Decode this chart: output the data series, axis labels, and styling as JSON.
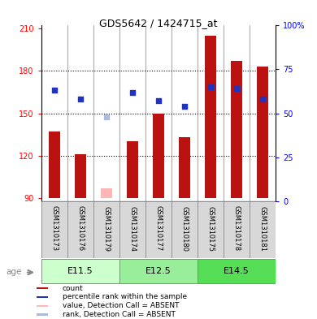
{
  "title": "GDS5642 / 1424715_at",
  "samples": [
    "GSM1310173",
    "GSM1310176",
    "GSM1310179",
    "GSM1310174",
    "GSM1310177",
    "GSM1310180",
    "GSM1310175",
    "GSM1310178",
    "GSM1310181"
  ],
  "counts": [
    137,
    121,
    null,
    130,
    150,
    133,
    205,
    187,
    183
  ],
  "ranks_pct": [
    63,
    58,
    null,
    62,
    57,
    54,
    65,
    64,
    58
  ],
  "absent_count": [
    null,
    null,
    97,
    null,
    null,
    null,
    null,
    null,
    null
  ],
  "absent_rank_pct": [
    null,
    null,
    48,
    null,
    null,
    null,
    null,
    null,
    null
  ],
  "groups": [
    {
      "label": "E11.5",
      "indices": [
        0,
        1,
        2
      ]
    },
    {
      "label": "E12.5",
      "indices": [
        3,
        4,
        5
      ]
    },
    {
      "label": "E14.5",
      "indices": [
        6,
        7,
        8
      ]
    }
  ],
  "ylim_left": [
    88,
    212
  ],
  "ylim_right": [
    0,
    100
  ],
  "yticks_left": [
    90,
    120,
    150,
    180,
    210
  ],
  "yticks_right": [
    0,
    25,
    50,
    75,
    100
  ],
  "ytick_labels_right": [
    "0",
    "25",
    "50",
    "75",
    "100%"
  ],
  "bar_color": "#bb1111",
  "absent_bar_color": "#ffb6b6",
  "dot_color": "#2233bb",
  "absent_dot_color": "#aabbdd",
  "bar_bottom": 90,
  "bar_width": 0.45,
  "legend_items": [
    {
      "label": "count",
      "color": "#bb1111"
    },
    {
      "label": "percentile rank within the sample",
      "color": "#2233bb"
    },
    {
      "label": "value, Detection Call = ABSENT",
      "color": "#ffb6b6"
    },
    {
      "label": "rank, Detection Call = ABSENT",
      "color": "#aabbdd"
    }
  ],
  "age_label": "age",
  "group_colors": [
    "#ccffcc",
    "#99ee99",
    "#55dd55"
  ],
  "sample_bg": "#d8d8d8",
  "background_color": "#ffffff",
  "plot_bg": "#ffffff"
}
